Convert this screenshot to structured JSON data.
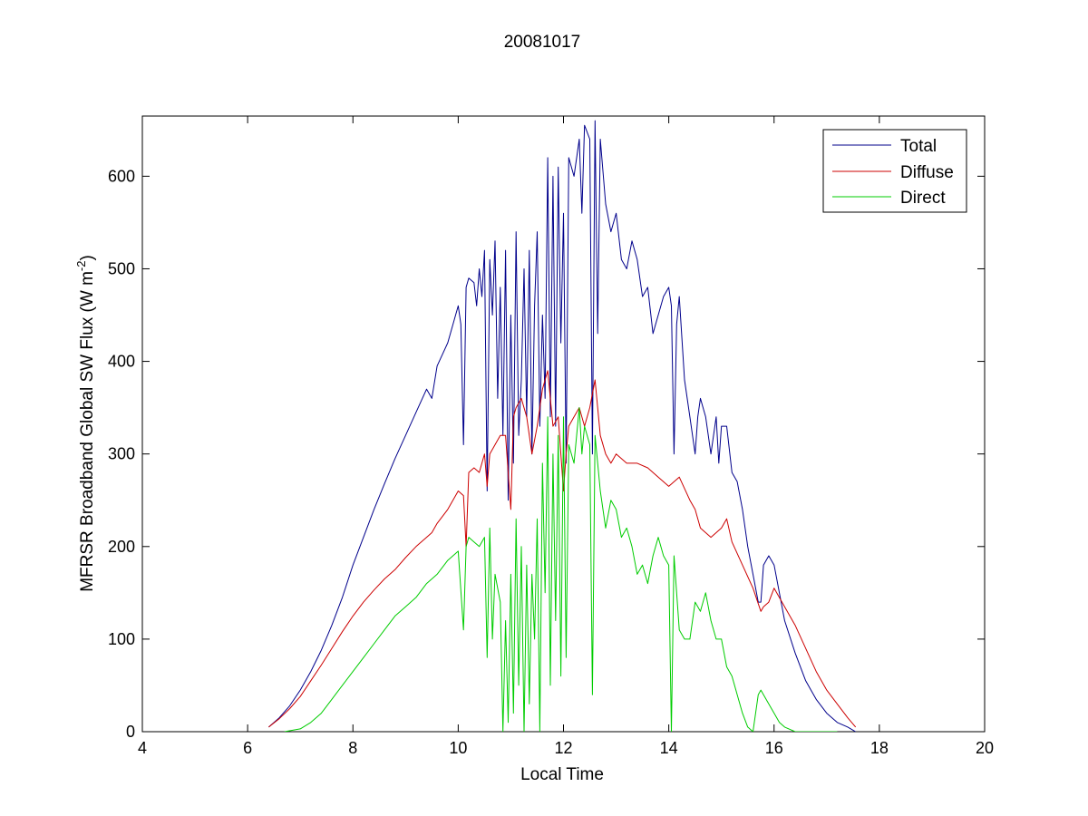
{
  "chart_data": {
    "type": "line",
    "title": "20081017",
    "xlabel": "Local Time",
    "ylabel_main": "MFRSR Broadband Global SW Flux (W m",
    "ylabel_sup": "-2",
    "ylabel_tail": ")",
    "xlim": [
      4,
      20
    ],
    "ylim": [
      0,
      665
    ],
    "xticks": [
      4,
      6,
      8,
      10,
      12,
      14,
      16,
      18,
      20
    ],
    "yticks": [
      0,
      100,
      200,
      300,
      400,
      500,
      600
    ],
    "grid": false,
    "legend_position": "top-right",
    "series": [
      {
        "name": "Total",
        "color": "#00008b",
        "x": [
          6.4,
          6.6,
          6.8,
          7.0,
          7.2,
          7.4,
          7.6,
          7.8,
          8.0,
          8.2,
          8.4,
          8.6,
          8.8,
          9.0,
          9.2,
          9.4,
          9.5,
          9.6,
          9.8,
          9.95,
          10.0,
          10.05,
          10.1,
          10.15,
          10.2,
          10.3,
          10.35,
          10.4,
          10.45,
          10.5,
          10.55,
          10.6,
          10.65,
          10.7,
          10.75,
          10.8,
          10.85,
          10.9,
          10.95,
          11.0,
          11.05,
          11.1,
          11.15,
          11.2,
          11.25,
          11.3,
          11.35,
          11.4,
          11.45,
          11.5,
          11.55,
          11.6,
          11.65,
          11.7,
          11.75,
          11.8,
          11.85,
          11.9,
          11.95,
          12.0,
          12.05,
          12.1,
          12.2,
          12.3,
          12.35,
          12.4,
          12.5,
          12.55,
          12.6,
          12.65,
          12.7,
          12.8,
          12.9,
          13.0,
          13.1,
          13.2,
          13.3,
          13.4,
          13.5,
          13.6,
          13.7,
          13.8,
          13.9,
          14.0,
          14.05,
          14.1,
          14.15,
          14.2,
          14.3,
          14.4,
          14.5,
          14.55,
          14.6,
          14.7,
          14.8,
          14.9,
          14.95,
          15.0,
          15.1,
          15.2,
          15.3,
          15.4,
          15.5,
          15.6,
          15.7,
          15.75,
          15.8,
          15.9,
          16.0,
          16.1,
          16.2,
          16.4,
          16.6,
          16.8,
          17.0,
          17.2,
          17.4,
          17.55
        ],
        "y": [
          5,
          15,
          28,
          45,
          65,
          88,
          115,
          145,
          180,
          210,
          240,
          268,
          295,
          320,
          345,
          370,
          360,
          395,
          420,
          450,
          460,
          440,
          310,
          480,
          490,
          485,
          460,
          500,
          470,
          520,
          260,
          510,
          450,
          530,
          360,
          480,
          320,
          520,
          250,
          450,
          290,
          540,
          320,
          380,
          500,
          340,
          520,
          300,
          460,
          540,
          330,
          450,
          360,
          620,
          340,
          600,
          330,
          610,
          420,
          560,
          290,
          620,
          600,
          640,
          560,
          655,
          640,
          300,
          660,
          430,
          640,
          570,
          540,
          560,
          510,
          500,
          530,
          510,
          470,
          480,
          430,
          450,
          470,
          480,
          460,
          300,
          440,
          470,
          380,
          340,
          300,
          340,
          360,
          340,
          300,
          340,
          290,
          330,
          330,
          280,
          270,
          240,
          200,
          170,
          140,
          140,
          180,
          190,
          180,
          150,
          120,
          85,
          55,
          35,
          20,
          10,
          5,
          0
        ],
        "y_note": ""
      },
      {
        "name": "Diffuse",
        "color": "#cc0000",
        "x": [
          6.4,
          6.6,
          6.8,
          7.0,
          7.2,
          7.4,
          7.6,
          7.8,
          8.0,
          8.2,
          8.4,
          8.6,
          8.8,
          9.0,
          9.2,
          9.4,
          9.5,
          9.6,
          9.8,
          10.0,
          10.1,
          10.15,
          10.2,
          10.3,
          10.4,
          10.5,
          10.55,
          10.6,
          10.7,
          10.8,
          10.9,
          11.0,
          11.05,
          11.1,
          11.2,
          11.3,
          11.4,
          11.5,
          11.6,
          11.7,
          11.8,
          11.9,
          12.0,
          12.05,
          12.1,
          12.2,
          12.3,
          12.4,
          12.5,
          12.6,
          12.7,
          12.8,
          12.9,
          13.0,
          13.2,
          13.4,
          13.6,
          13.8,
          14.0,
          14.2,
          14.4,
          14.5,
          14.6,
          14.8,
          15.0,
          15.1,
          15.2,
          15.4,
          15.6,
          15.75,
          15.8,
          15.9,
          16.0,
          16.2,
          16.4,
          16.6,
          16.8,
          17.0,
          17.2,
          17.4,
          17.55
        ],
        "y": [
          5,
          14,
          25,
          38,
          55,
          72,
          90,
          108,
          125,
          140,
          153,
          165,
          175,
          188,
          200,
          210,
          215,
          225,
          240,
          260,
          255,
          200,
          280,
          285,
          280,
          300,
          265,
          300,
          310,
          320,
          320,
          240,
          340,
          350,
          360,
          340,
          300,
          330,
          370,
          390,
          330,
          340,
          260,
          300,
          330,
          340,
          350,
          330,
          350,
          380,
          320,
          300,
          290,
          300,
          290,
          290,
          285,
          275,
          265,
          275,
          250,
          240,
          220,
          210,
          220,
          230,
          205,
          180,
          155,
          130,
          135,
          140,
          155,
          135,
          115,
          90,
          65,
          45,
          30,
          15,
          5
        ],
        "y_note": ""
      },
      {
        "name": "Direct",
        "color": "#00cc00",
        "x": [
          6.7,
          7.0,
          7.2,
          7.4,
          7.6,
          7.8,
          8.0,
          8.2,
          8.4,
          8.6,
          8.8,
          9.0,
          9.2,
          9.4,
          9.6,
          9.8,
          10.0,
          10.1,
          10.15,
          10.2,
          10.3,
          10.4,
          10.5,
          10.55,
          10.6,
          10.65,
          10.7,
          10.8,
          10.85,
          10.9,
          10.95,
          11.0,
          11.05,
          11.1,
          11.15,
          11.2,
          11.25,
          11.3,
          11.35,
          11.4,
          11.45,
          11.5,
          11.55,
          11.6,
          11.65,
          11.7,
          11.75,
          11.8,
          11.85,
          11.9,
          11.95,
          12.0,
          12.05,
          12.1,
          12.2,
          12.3,
          12.35,
          12.4,
          12.5,
          12.55,
          12.6,
          12.7,
          12.8,
          12.9,
          13.0,
          13.1,
          13.2,
          13.3,
          13.4,
          13.5,
          13.6,
          13.7,
          13.8,
          13.9,
          14.0,
          14.05,
          14.1,
          14.2,
          14.3,
          14.4,
          14.5,
          14.6,
          14.7,
          14.8,
          14.9,
          15.0,
          15.1,
          15.2,
          15.3,
          15.4,
          15.5,
          15.6,
          15.7,
          15.75,
          15.8,
          15.9,
          16.0,
          16.1,
          16.2,
          16.4,
          16.6,
          16.8,
          17.0,
          17.2
        ],
        "y": [
          0,
          3,
          10,
          20,
          35,
          50,
          65,
          80,
          95,
          110,
          125,
          135,
          145,
          160,
          170,
          185,
          195,
          110,
          200,
          210,
          205,
          200,
          210,
          80,
          220,
          100,
          170,
          140,
          0,
          120,
          10,
          170,
          20,
          230,
          50,
          200,
          0,
          180,
          30,
          170,
          100,
          230,
          0,
          290,
          150,
          340,
          50,
          300,
          120,
          320,
          60,
          340,
          80,
          310,
          290,
          350,
          300,
          330,
          310,
          40,
          320,
          260,
          220,
          250,
          240,
          210,
          220,
          200,
          170,
          180,
          160,
          190,
          210,
          190,
          180,
          0,
          190,
          110,
          100,
          100,
          140,
          130,
          150,
          120,
          100,
          100,
          70,
          60,
          40,
          20,
          5,
          0,
          40,
          45,
          40,
          30,
          20,
          10,
          5,
          0,
          0,
          0,
          0,
          0
        ],
        "y_note": ""
      }
    ]
  }
}
